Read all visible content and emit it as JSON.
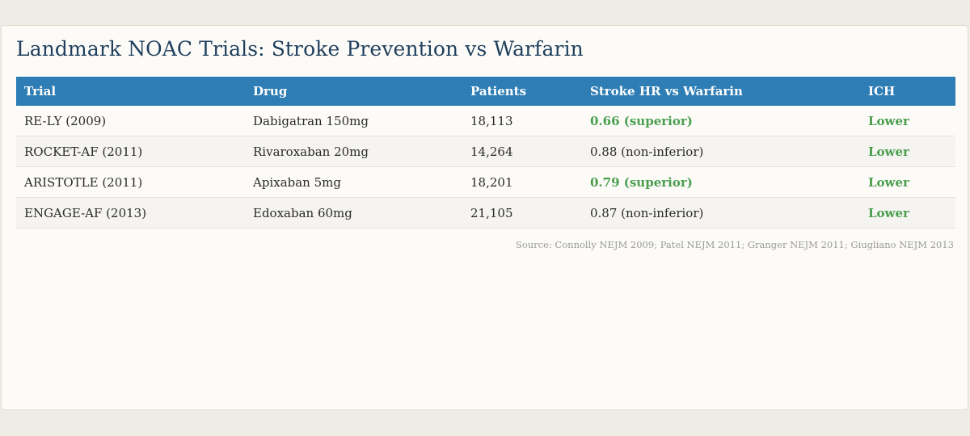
{
  "title": "Landmark NOAC Trials: Stroke Prevention vs Warfarin",
  "chart_data": {
    "type": "table",
    "title": "Landmark NOAC Trials: Stroke Prevention vs Warfarin",
    "columns": [
      "Trial",
      "Drug",
      "Patients",
      "Stroke HR vs Warfarin",
      "ICH"
    ],
    "rows": [
      {
        "trial": "RE-LY (2009)",
        "drug": "Dabigatran 150mg",
        "patients": "18,113",
        "hr": "0.66 (superior)",
        "ich": "Lower",
        "highlight_hr": true
      },
      {
        "trial": "ROCKET-AF (2011)",
        "drug": "Rivaroxaban 20mg",
        "patients": "14,264",
        "hr": "0.88 (non-inferior)",
        "ich": "Lower",
        "highlight_hr": false
      },
      {
        "trial": "ARISTOTLE (2011)",
        "drug": "Apixaban 5mg",
        "patients": "18,201",
        "hr": "0.79 (superior)",
        "ich": "Lower",
        "highlight_hr": true
      },
      {
        "trial": "ENGAGE-AF (2013)",
        "drug": "Edoxaban 60mg",
        "patients": "21,105",
        "hr": "0.87 (non-inferior)",
        "ich": "Lower",
        "highlight_hr": false
      }
    ],
    "source": "Source: Connolly NEJM 2009; Patel NEJM 2011; Granger NEJM 2011; Giugliano NEJM 2013"
  },
  "colors": {
    "header_bg": "#2e7db4",
    "header_text": "#ffffff",
    "title": "#1f3f5c",
    "positive": "#4a9e4e",
    "source_text": "#9a9a9a"
  }
}
